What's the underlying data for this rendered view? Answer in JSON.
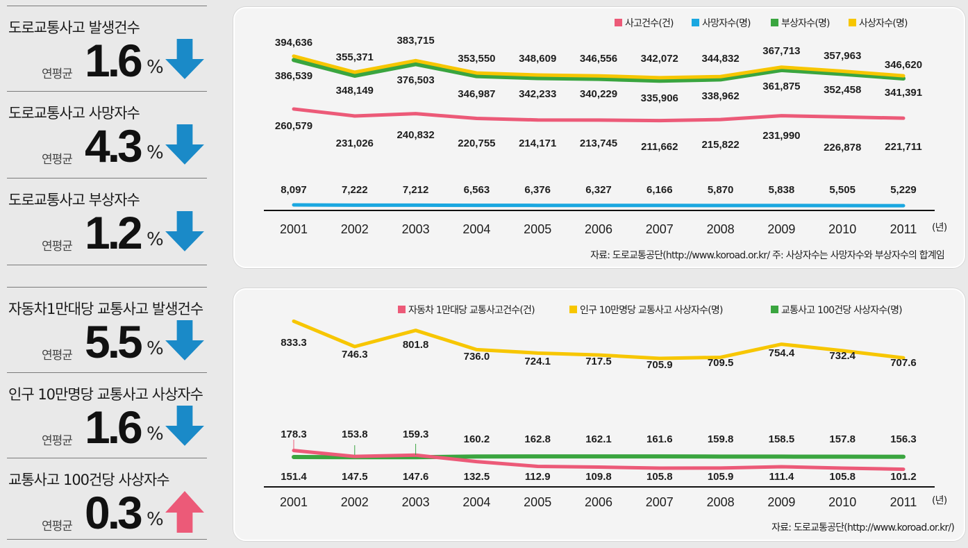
{
  "stats": [
    {
      "title": "도로교통사고 발생건수",
      "avg_label": "연평균",
      "value": "1.6",
      "unit": "%",
      "direction": "down"
    },
    {
      "title": "도로교통사고 사망자수",
      "avg_label": "연평균",
      "value": "4.3",
      "unit": "%",
      "direction": "down"
    },
    {
      "title": "도로교통사고 부상자수",
      "avg_label": "연평균",
      "value": "1.2",
      "unit": "%",
      "direction": "down"
    },
    {
      "title": "자동차1만대당 교통사고 발생건수",
      "avg_label": "연평균",
      "value": "5.5",
      "unit": "%",
      "direction": "down"
    },
    {
      "title": "인구 10만명당 교통사고 사상자수",
      "avg_label": "연평균",
      "value": "1.6",
      "unit": "%",
      "direction": "down"
    },
    {
      "title": "교통사고 100건당 사상자수",
      "avg_label": "연평균",
      "value": "0.3",
      "unit": "%",
      "direction": "up"
    }
  ],
  "colors": {
    "down": "#1a8ac8",
    "up": "#ec5a78",
    "pink": "#ec5a78",
    "blue": "#1aa7e0",
    "green": "#3aa53f",
    "yellow": "#f7c600"
  },
  "chart_data": [
    {
      "type": "line",
      "x": [
        "2001",
        "2002",
        "2003",
        "2004",
        "2005",
        "2006",
        "2007",
        "2008",
        "2009",
        "2010",
        "2011"
      ],
      "year_unit": "(년)",
      "series": [
        {
          "name": "사고건수(건)",
          "color": "#ec5a78",
          "values": [
            260579,
            231026,
            240832,
            220755,
            214171,
            213745,
            211662,
            215822,
            231990,
            226878,
            221711
          ],
          "labels": [
            "260,579",
            "231,026",
            "240,832",
            "220,755",
            "214,171",
            "213,745",
            "211,662",
            "215,822",
            "231,990",
            "226,878",
            "221,711"
          ]
        },
        {
          "name": "사망자수(명)",
          "color": "#1aa7e0",
          "values": [
            8097,
            7222,
            7212,
            6563,
            6376,
            6327,
            6166,
            5870,
            5838,
            5505,
            5229
          ],
          "labels": [
            "8,097",
            "7,222",
            "7,212",
            "6,563",
            "6,376",
            "6,327",
            "6,166",
            "5,870",
            "5,838",
            "5,505",
            "5,229"
          ]
        },
        {
          "name": "부상자수(명)",
          "color": "#3aa53f",
          "values": [
            386539,
            348149,
            376503,
            346987,
            342233,
            340229,
            335906,
            338962,
            361875,
            352458,
            341391
          ],
          "labels": [
            "386,539",
            "348,149",
            "376,503",
            "346,987",
            "342,233",
            "340,229",
            "335,906",
            "338,962",
            "361,875",
            "352,458",
            "341,391"
          ]
        },
        {
          "name": "사상자수(명)",
          "color": "#f7c600",
          "values": [
            394636,
            355371,
            383715,
            353550,
            348609,
            346556,
            342072,
            344832,
            367713,
            357963,
            346620
          ],
          "labels": [
            "394,636",
            "355,371",
            "383,715",
            "353,550",
            "348,609",
            "346,556",
            "342,072",
            "344,832",
            "367,713",
            "357,963",
            "346,620"
          ]
        }
      ],
      "source": "자료: 도로교통공단(http://www.koroad.or.kr/  주: 사상자수는 사망자수와 부상자수의 합계임",
      "legend": "top-right"
    },
    {
      "type": "line",
      "x": [
        "2001",
        "2002",
        "2003",
        "2004",
        "2005",
        "2006",
        "2007",
        "2008",
        "2009",
        "2010",
        "2011"
      ],
      "year_unit": "(년)",
      "series": [
        {
          "name": "자동차 1만대당 교통사고건수(건)",
          "color": "#ec5a78",
          "values": [
            178.3,
            153.8,
            159.3,
            132.5,
            112.9,
            109.8,
            105.8,
            105.9,
            111.4,
            105.8,
            101.2
          ],
          "labels": [
            "178.3",
            "153.8",
            "159.3",
            "132.5",
            "112.9",
            "109.8",
            "105.8",
            "105.9",
            "111.4",
            "105.8",
            "101.2"
          ]
        },
        {
          "name": "인구 10만명당 교통사고 사상자수(명)",
          "color": "#f7c600",
          "values": [
            833.3,
            746.3,
            801.8,
            736.0,
            724.1,
            717.5,
            705.9,
            709.5,
            754.4,
            732.4,
            707.6
          ],
          "labels": [
            "833.3",
            "746.3",
            "801.8",
            "736.0",
            "724.1",
            "717.5",
            "705.9",
            "709.5",
            "754.4",
            "732.4",
            "707.6"
          ]
        },
        {
          "name": "교통사고 100건당 사상자수(명)",
          "color": "#3aa53f",
          "values": [
            151.4,
            147.5,
            147.6,
            160.2,
            162.8,
            162.1,
            161.6,
            159.8,
            158.5,
            157.8,
            156.3
          ],
          "labels": [
            "151.4",
            "147.5",
            "147.6",
            "160.2",
            "162.8",
            "162.1",
            "161.6",
            "159.8",
            "158.5",
            "157.8",
            "156.3"
          ]
        }
      ],
      "source": "자료: 도로교통공단(http://www.koroad.or.kr/)",
      "legend": "top-right"
    }
  ]
}
